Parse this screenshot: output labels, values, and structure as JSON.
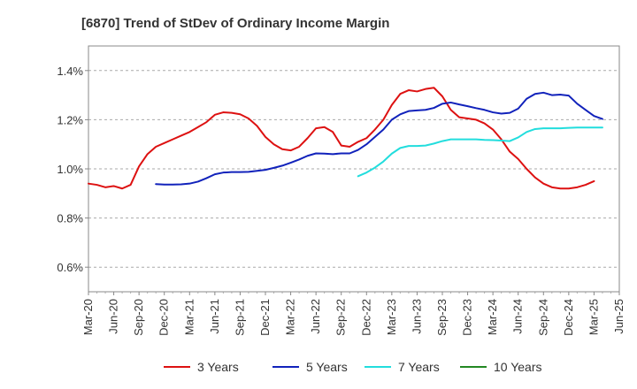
{
  "chart_data": {
    "type": "line",
    "title": "[6870]  Trend of StDev of Ordinary Income Margin",
    "xlabel": "",
    "ylabel": "",
    "x_ticks": [
      "Mar-20",
      "Jun-20",
      "Sep-20",
      "Dec-20",
      "Mar-21",
      "Jun-21",
      "Sep-21",
      "Dec-21",
      "Mar-22",
      "Jun-22",
      "Sep-22",
      "Dec-22",
      "Mar-23",
      "Jun-23",
      "Sep-23",
      "Dec-23",
      "Mar-24",
      "Jun-24",
      "Sep-24",
      "Dec-24",
      "Mar-25",
      "Jun-25"
    ],
    "y_ticks": [
      "0.6%",
      "0.8%",
      "1.0%",
      "1.2%",
      "1.4%"
    ],
    "y_tick_values": [
      0.6,
      0.8,
      1.0,
      1.2,
      1.4
    ],
    "ylim": [
      0.5,
      1.5
    ],
    "x_range_months": [
      0,
      63
    ],
    "grid": "horizontal-dashed",
    "legend_position": "bottom",
    "series": [
      {
        "name": "3 Years",
        "color": "#dd1111",
        "points": [
          [
            0,
            0.94
          ],
          [
            1,
            0.935
          ],
          [
            2,
            0.925
          ],
          [
            3,
            0.93
          ],
          [
            4,
            0.92
          ],
          [
            5,
            0.935
          ],
          [
            6,
            1.01
          ],
          [
            7,
            1.06
          ],
          [
            8,
            1.09
          ],
          [
            9,
            1.105
          ],
          [
            10,
            1.12
          ],
          [
            11,
            1.135
          ],
          [
            12,
            1.15
          ],
          [
            13,
            1.17
          ],
          [
            14,
            1.19
          ],
          [
            15,
            1.22
          ],
          [
            16,
            1.23
          ],
          [
            17,
            1.228
          ],
          [
            18,
            1.222
          ],
          [
            19,
            1.205
          ],
          [
            20,
            1.175
          ],
          [
            21,
            1.13
          ],
          [
            22,
            1.1
          ],
          [
            23,
            1.08
          ],
          [
            24,
            1.075
          ],
          [
            25,
            1.09
          ],
          [
            26,
            1.125
          ],
          [
            27,
            1.165
          ],
          [
            28,
            1.17
          ],
          [
            29,
            1.15
          ],
          [
            30,
            1.095
          ],
          [
            31,
            1.09
          ],
          [
            32,
            1.11
          ],
          [
            33,
            1.125
          ],
          [
            34,
            1.16
          ],
          [
            35,
            1.2
          ],
          [
            36,
            1.26
          ],
          [
            37,
            1.305
          ],
          [
            38,
            1.32
          ],
          [
            39,
            1.315
          ],
          [
            40,
            1.325
          ],
          [
            41,
            1.33
          ],
          [
            42,
            1.295
          ],
          [
            43,
            1.24
          ],
          [
            44,
            1.21
          ],
          [
            45,
            1.205
          ],
          [
            46,
            1.2
          ],
          [
            47,
            1.185
          ],
          [
            48,
            1.16
          ],
          [
            49,
            1.12
          ],
          [
            50,
            1.07
          ],
          [
            51,
            1.04
          ],
          [
            52,
            1.0
          ],
          [
            53,
            0.965
          ],
          [
            54,
            0.94
          ],
          [
            55,
            0.925
          ],
          [
            56,
            0.92
          ],
          [
            57,
            0.92
          ],
          [
            58,
            0.925
          ],
          [
            59,
            0.935
          ],
          [
            60,
            0.95
          ]
        ]
      },
      {
        "name": "5 Years",
        "color": "#1122bb",
        "points": [
          [
            8,
            0.938
          ],
          [
            9,
            0.936
          ],
          [
            10,
            0.936
          ],
          [
            11,
            0.937
          ],
          [
            12,
            0.94
          ],
          [
            13,
            0.948
          ],
          [
            14,
            0.962
          ],
          [
            15,
            0.978
          ],
          [
            16,
            0.985
          ],
          [
            17,
            0.987
          ],
          [
            18,
            0.987
          ],
          [
            19,
            0.988
          ],
          [
            20,
            0.992
          ],
          [
            21,
            0.996
          ],
          [
            22,
            1.004
          ],
          [
            23,
            1.013
          ],
          [
            24,
            1.025
          ],
          [
            25,
            1.038
          ],
          [
            26,
            1.053
          ],
          [
            27,
            1.063
          ],
          [
            28,
            1.062
          ],
          [
            29,
            1.06
          ],
          [
            30,
            1.063
          ],
          [
            31,
            1.063
          ],
          [
            32,
            1.077
          ],
          [
            33,
            1.1
          ],
          [
            34,
            1.13
          ],
          [
            35,
            1.16
          ],
          [
            36,
            1.2
          ],
          [
            37,
            1.222
          ],
          [
            38,
            1.235
          ],
          [
            39,
            1.238
          ],
          [
            40,
            1.24
          ],
          [
            41,
            1.248
          ],
          [
            42,
            1.265
          ],
          [
            43,
            1.27
          ],
          [
            44,
            1.262
          ],
          [
            45,
            1.255
          ],
          [
            46,
            1.247
          ],
          [
            47,
            1.24
          ],
          [
            48,
            1.23
          ],
          [
            49,
            1.225
          ],
          [
            50,
            1.228
          ],
          [
            51,
            1.245
          ],
          [
            52,
            1.285
          ],
          [
            53,
            1.305
          ],
          [
            54,
            1.31
          ],
          [
            55,
            1.3
          ],
          [
            56,
            1.302
          ],
          [
            57,
            1.298
          ],
          [
            58,
            1.265
          ],
          [
            59,
            1.24
          ],
          [
            60,
            1.215
          ],
          [
            61,
            1.203
          ]
        ]
      },
      {
        "name": "7 Years",
        "color": "#22dddd",
        "points": [
          [
            32,
            0.97
          ],
          [
            33,
            0.985
          ],
          [
            34,
            1.005
          ],
          [
            35,
            1.03
          ],
          [
            36,
            1.062
          ],
          [
            37,
            1.085
          ],
          [
            38,
            1.093
          ],
          [
            39,
            1.093
          ],
          [
            40,
            1.095
          ],
          [
            41,
            1.103
          ],
          [
            42,
            1.113
          ],
          [
            43,
            1.12
          ],
          [
            44,
            1.12
          ],
          [
            45,
            1.12
          ],
          [
            46,
            1.12
          ],
          [
            47,
            1.118
          ],
          [
            48,
            1.117
          ],
          [
            49,
            1.115
          ],
          [
            50,
            1.113
          ],
          [
            51,
            1.128
          ],
          [
            52,
            1.15
          ],
          [
            53,
            1.162
          ],
          [
            54,
            1.165
          ],
          [
            55,
            1.165
          ],
          [
            56,
            1.165
          ],
          [
            57,
            1.167
          ],
          [
            58,
            1.168
          ],
          [
            59,
            1.168
          ],
          [
            60,
            1.168
          ],
          [
            61,
            1.168
          ]
        ]
      },
      {
        "name": "10 Years",
        "color": "#228822",
        "points": []
      }
    ]
  }
}
